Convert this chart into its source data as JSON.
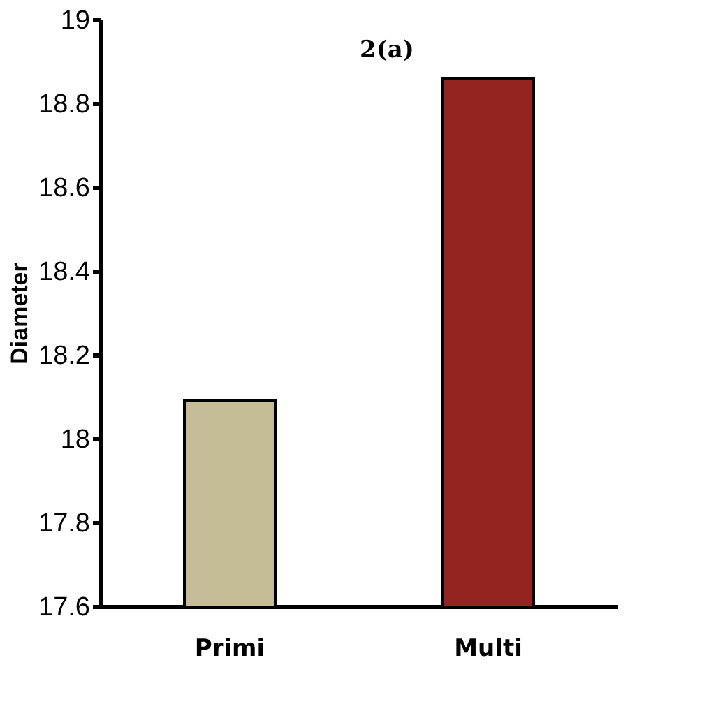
{
  "chart_data": {
    "type": "bar",
    "title": "2(a)",
    "ylabel": "Diameter",
    "categories": [
      "Primi",
      "Multi"
    ],
    "values": [
      18.09,
      18.86
    ],
    "colors": [
      "#c4bd97",
      "#952322"
    ],
    "ylim": [
      17.6,
      19
    ],
    "yticks": [
      17.6,
      17.8,
      18,
      18.2,
      18.4,
      18.6,
      18.8,
      19
    ],
    "grid": false
  }
}
